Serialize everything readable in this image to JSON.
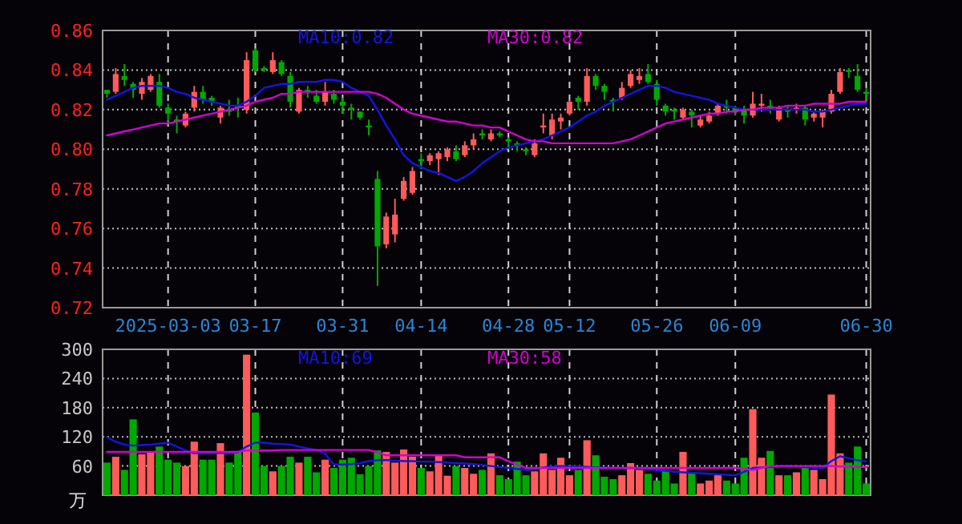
{
  "chart_data": [
    {
      "type": "candlestick",
      "categories": [
        null,
        null,
        null,
        null,
        null,
        null,
        null,
        "2025-03-03",
        null,
        null,
        null,
        null,
        null,
        null,
        null,
        null,
        null,
        "03-17",
        null,
        null,
        null,
        null,
        null,
        null,
        null,
        null,
        null,
        "03-31",
        null,
        null,
        null,
        null,
        null,
        null,
        null,
        null,
        "04-14",
        null,
        null,
        null,
        null,
        null,
        null,
        null,
        null,
        null,
        "04-28",
        null,
        null,
        null,
        null,
        null,
        null,
        "05-12",
        null,
        null,
        null,
        null,
        null,
        null,
        null,
        null,
        null,
        "05-26",
        null,
        null,
        null,
        null,
        null,
        null,
        null,
        null,
        "06-09",
        null,
        null,
        null,
        null,
        null,
        null,
        null,
        null,
        null,
        null,
        null,
        null,
        null,
        null,
        "06-30"
      ],
      "ohlc": [
        [
          0.83,
          0.83,
          0.826,
          0.828
        ],
        [
          0.829,
          0.841,
          0.828,
          0.838
        ],
        [
          0.837,
          0.843,
          0.832,
          0.835
        ],
        [
          0.833,
          0.834,
          0.826,
          0.83
        ],
        [
          0.828,
          0.836,
          0.825,
          0.834
        ],
        [
          0.83,
          0.838,
          0.829,
          0.837
        ],
        [
          0.834,
          0.838,
          0.821,
          0.822
        ],
        [
          0.821,
          0.823,
          0.813,
          0.818
        ],
        [
          0.815,
          0.817,
          0.808,
          0.814
        ],
        [
          0.812,
          0.819,
          0.811,
          0.818
        ],
        [
          0.821,
          0.832,
          0.819,
          0.829
        ],
        [
          0.829,
          0.832,
          0.823,
          0.825
        ],
        [
          0.826,
          0.827,
          0.822,
          0.824
        ],
        [
          0.816,
          0.822,
          0.813,
          0.821
        ],
        [
          0.82,
          0.825,
          0.817,
          0.819
        ],
        [
          0.822,
          0.826,
          0.816,
          0.821
        ],
        [
          0.82,
          0.849,
          0.818,
          0.845
        ],
        [
          0.85,
          0.851,
          0.839,
          0.84
        ],
        [
          0.841,
          0.842,
          0.839,
          0.84
        ],
        [
          0.839,
          0.849,
          0.838,
          0.845
        ],
        [
          0.844,
          0.845,
          0.837,
          0.838
        ],
        [
          0.837,
          0.839,
          0.821,
          0.824
        ],
        [
          0.819,
          0.831,
          0.818,
          0.83
        ],
        [
          0.83,
          0.832,
          0.826,
          0.829
        ],
        [
          0.827,
          0.83,
          0.823,
          0.824
        ],
        [
          0.824,
          0.834,
          0.822,
          0.829
        ],
        [
          0.828,
          0.83,
          0.823,
          0.825
        ],
        [
          0.824,
          0.826,
          0.818,
          0.822
        ],
        [
          0.821,
          0.823,
          0.815,
          0.82
        ],
        [
          0.819,
          0.819,
          0.815,
          0.816
        ],
        [
          0.812,
          0.815,
          0.807,
          0.811
        ],
        [
          0.785,
          0.789,
          0.731,
          0.751
        ],
        [
          0.752,
          0.768,
          0.75,
          0.766
        ],
        [
          0.757,
          0.775,
          0.753,
          0.767
        ],
        [
          0.775,
          0.786,
          0.774,
          0.784
        ],
        [
          0.778,
          0.791,
          0.777,
          0.789
        ],
        [
          0.795,
          0.798,
          0.79,
          0.794
        ],
        [
          0.794,
          0.798,
          0.792,
          0.797
        ],
        [
          0.795,
          0.799,
          0.787,
          0.798
        ],
        [
          0.796,
          0.801,
          0.794,
          0.8
        ],
        [
          0.799,
          0.802,
          0.794,
          0.795
        ],
        [
          0.797,
          0.804,
          0.796,
          0.802
        ],
        [
          0.802,
          0.808,
          0.8,
          0.805
        ],
        [
          0.808,
          0.81,
          0.805,
          0.807
        ],
        [
          0.805,
          0.81,
          0.804,
          0.808
        ],
        [
          0.808,
          0.809,
          0.806,
          0.807
        ],
        [
          0.805,
          0.806,
          0.8,
          0.804
        ],
        [
          0.803,
          0.804,
          0.799,
          0.802
        ],
        [
          0.8,
          0.801,
          0.797,
          0.799
        ],
        [
          0.797,
          0.805,
          0.796,
          0.803
        ],
        [
          0.811,
          0.818,
          0.808,
          0.812
        ],
        [
          0.807,
          0.818,
          0.805,
          0.815
        ],
        [
          0.814,
          0.818,
          0.81,
          0.816
        ],
        [
          0.818,
          0.825,
          0.817,
          0.824
        ],
        [
          0.826,
          0.827,
          0.82,
          0.824
        ],
        [
          0.824,
          0.841,
          0.822,
          0.837
        ],
        [
          0.837,
          0.838,
          0.83,
          0.832
        ],
        [
          0.832,
          0.833,
          0.825,
          0.829
        ],
        [
          0.825,
          0.826,
          0.819,
          0.824
        ],
        [
          0.826,
          0.834,
          0.825,
          0.831
        ],
        [
          0.832,
          0.84,
          0.831,
          0.838
        ],
        [
          0.835,
          0.841,
          0.833,
          0.837
        ],
        [
          0.838,
          0.843,
          0.833,
          0.834
        ],
        [
          0.833,
          0.835,
          0.822,
          0.825
        ],
        [
          0.822,
          0.823,
          0.817,
          0.819
        ],
        [
          0.82,
          0.821,
          0.815,
          0.819
        ],
        [
          0.816,
          0.821,
          0.815,
          0.82
        ],
        [
          0.819,
          0.82,
          0.811,
          0.817
        ],
        [
          0.812,
          0.817,
          0.811,
          0.815
        ],
        [
          0.814,
          0.819,
          0.813,
          0.817
        ],
        [
          0.818,
          0.823,
          0.817,
          0.822
        ],
        [
          0.822,
          0.825,
          0.818,
          0.821
        ],
        [
          0.821,
          0.822,
          0.817,
          0.819
        ],
        [
          0.82,
          0.822,
          0.813,
          0.817
        ],
        [
          0.817,
          0.829,
          0.816,
          0.823
        ],
        [
          0.822,
          0.828,
          0.819,
          0.823
        ],
        [
          0.822,
          0.825,
          0.818,
          0.821
        ],
        [
          0.815,
          0.822,
          0.814,
          0.821
        ],
        [
          0.82,
          0.822,
          0.816,
          0.819
        ],
        [
          0.82,
          0.823,
          0.818,
          0.821
        ],
        [
          0.821,
          0.822,
          0.812,
          0.815
        ],
        [
          0.816,
          0.819,
          0.814,
          0.818
        ],
        [
          0.816,
          0.82,
          0.811,
          0.819
        ],
        [
          0.819,
          0.83,
          0.818,
          0.828
        ],
        [
          0.829,
          0.841,
          0.828,
          0.839
        ],
        [
          0.84,
          0.841,
          0.836,
          0.839
        ],
        [
          0.837,
          0.843,
          0.829,
          0.83
        ],
        [
          0.829,
          0.831,
          0.824,
          0.828
        ]
      ],
      "colors": [
        "#00a800",
        "#ff5b5b",
        "#00a800",
        "#00a800",
        "#ff5b5b",
        "#ff5b5b",
        "#00a800",
        "#00a800",
        "#00a800",
        "#ff5b5b",
        "#ff5b5b",
        "#00a800",
        "#00a800",
        "#ff5b5b",
        "#00a800",
        "#00a800",
        "#ff5b5b",
        "#00a800",
        "#00a800",
        "#ff5b5b",
        "#00a800",
        "#00a800",
        "#ff5b5b",
        "#00a800",
        "#00a800",
        "#ff5b5b",
        "#00a800",
        "#00a800",
        "#00a800",
        "#00a800",
        "#00a800",
        "#00a800",
        "#ff5b5b",
        "#ff5b5b",
        "#ff5b5b",
        "#ff5b5b",
        "#00a800",
        "#ff5b5b",
        "#ff5b5b",
        "#ff5b5b",
        "#00a800",
        "#ff5b5b",
        "#ff5b5b",
        "#00a800",
        "#ff5b5b",
        "#00a800",
        "#00a800",
        "#00a800",
        "#00a800",
        "#ff5b5b",
        "#ff5b5b",
        "#ff5b5b",
        "#ff5b5b",
        "#ff5b5b",
        "#00a800",
        "#ff5b5b",
        "#00a800",
        "#00a800",
        "#00a800",
        "#ff5b5b",
        "#ff5b5b",
        "#ff5b5b",
        "#00a800",
        "#00a800",
        "#00a800",
        "#00a800",
        "#ff5b5b",
        "#00a800",
        "#ff5b5b",
        "#ff5b5b",
        "#ff5b5b",
        "#00a800",
        "#00a800",
        "#00a800",
        "#ff5b5b",
        "#ff5b5b",
        "#00a800",
        "#ff5b5b",
        "#00a800",
        "#ff5b5b",
        "#00a800",
        "#ff5b5b",
        "#ff5b5b",
        "#ff5b5b",
        "#ff5b5b",
        "#00a800",
        "#00a800",
        "#00a800"
      ],
      "series": [
        {
          "name": "MA10:0.82",
          "type": "line",
          "color": "#1414e6",
          "values": [
            0.825,
            0.827,
            0.829,
            0.831,
            0.832,
            0.832,
            0.832,
            0.831,
            0.829,
            0.828,
            0.826,
            0.825,
            0.824,
            0.823,
            0.822,
            0.822,
            0.824,
            0.827,
            0.831,
            0.832,
            0.833,
            0.833,
            0.834,
            0.834,
            0.834,
            0.835,
            0.835,
            0.834,
            0.831,
            0.829,
            0.827,
            0.82,
            0.812,
            0.805,
            0.797,
            0.793,
            0.791,
            0.789,
            0.788,
            0.786,
            0.784,
            0.786,
            0.789,
            0.793,
            0.796,
            0.799,
            0.801,
            0.802,
            0.803,
            0.804,
            0.805,
            0.807,
            0.809,
            0.811,
            0.814,
            0.817,
            0.819,
            0.822,
            0.824,
            0.826,
            0.828,
            0.83,
            0.832,
            0.832,
            0.831,
            0.829,
            0.828,
            0.827,
            0.826,
            0.825,
            0.823,
            0.822,
            0.821,
            0.82,
            0.82,
            0.82,
            0.82,
            0.82,
            0.82,
            0.82,
            0.82,
            0.819,
            0.819,
            0.82,
            0.821,
            0.822,
            0.823,
            0.823
          ]
        },
        {
          "name": "MA30:0.82",
          "type": "line",
          "color": "#d400d4",
          "values": [
            0.807,
            0.808,
            0.809,
            0.81,
            0.811,
            0.812,
            0.813,
            0.813,
            0.814,
            0.815,
            0.816,
            0.817,
            0.818,
            0.819,
            0.82,
            0.821,
            0.822,
            0.824,
            0.825,
            0.826,
            0.828,
            0.828,
            0.829,
            0.829,
            0.829,
            0.829,
            0.829,
            0.829,
            0.829,
            0.829,
            0.829,
            0.828,
            0.826,
            0.823,
            0.82,
            0.818,
            0.817,
            0.816,
            0.815,
            0.814,
            0.814,
            0.813,
            0.812,
            0.812,
            0.811,
            0.811,
            0.809,
            0.807,
            0.805,
            0.804,
            0.804,
            0.803,
            0.803,
            0.803,
            0.803,
            0.803,
            0.803,
            0.803,
            0.803,
            0.804,
            0.805,
            0.807,
            0.809,
            0.811,
            0.813,
            0.814,
            0.815,
            0.816,
            0.817,
            0.818,
            0.818,
            0.819,
            0.819,
            0.82,
            0.82,
            0.821,
            0.821,
            0.821,
            0.822,
            0.822,
            0.822,
            0.823,
            0.823,
            0.823,
            0.823,
            0.824,
            0.824,
            0.824
          ]
        }
      ],
      "ylim": [
        0.72,
        0.86
      ],
      "yticks": [
        0.72,
        0.74,
        0.76,
        0.78,
        {
          "value": 0.8,
          "label": "0.80"
        },
        0.82,
        0.84,
        0.86
      ],
      "grid": true
    },
    {
      "type": "bar",
      "categories": [
        null,
        null,
        null,
        null,
        null,
        null,
        null,
        null,
        null,
        null,
        null,
        null,
        null,
        null,
        null,
        null,
        null,
        null,
        null,
        null,
        null,
        null,
        null,
        null,
        null,
        null,
        null,
        null,
        null,
        null,
        null,
        null,
        null,
        null,
        null,
        null,
        null,
        null,
        null,
        null,
        null,
        null,
        null,
        null,
        null,
        null,
        null,
        null,
        null,
        null,
        null,
        null,
        null,
        null,
        null,
        null,
        null,
        null,
        null,
        null,
        null,
        null,
        null,
        null,
        null,
        null,
        null,
        null,
        null,
        null,
        null,
        null,
        null,
        null,
        null,
        null,
        null,
        null,
        null,
        null,
        null,
        null,
        null,
        null,
        null,
        null,
        null,
        null
      ],
      "tick_labels": "y",
      "ylabel": "万",
      "values": [
        67,
        79,
        52,
        156,
        84,
        89,
        100,
        73,
        67,
        60,
        110,
        73,
        73,
        107,
        67,
        89,
        289,
        170,
        60,
        49,
        60,
        79,
        67,
        79,
        47,
        73,
        56,
        73,
        77,
        43,
        60,
        92,
        89,
        67,
        94,
        79,
        56,
        49,
        81,
        40,
        60,
        56,
        44,
        52,
        86,
        41,
        33,
        69,
        41,
        49,
        86,
        52,
        77,
        41,
        52,
        113,
        82,
        38,
        33,
        41,
        66,
        52,
        44,
        30,
        52,
        24,
        89,
        47,
        24,
        30,
        41,
        30,
        24,
        77,
        177,
        77,
        91,
        41,
        41,
        47,
        56,
        52,
        33,
        207,
        86,
        67,
        100,
        24
      ],
      "colors": [
        "#00a800",
        "#ff5b5b",
        "#00a800",
        "#00a800",
        "#ff5b5b",
        "#ff5b5b",
        "#00a800",
        "#00a800",
        "#00a800",
        "#ff5b5b",
        "#ff5b5b",
        "#00a800",
        "#00a800",
        "#ff5b5b",
        "#00a800",
        "#00a800",
        "#ff5b5b",
        "#00a800",
        "#00a800",
        "#ff5b5b",
        "#00a800",
        "#00a800",
        "#ff5b5b",
        "#00a800",
        "#00a800",
        "#ff5b5b",
        "#00a800",
        "#00a800",
        "#00a800",
        "#00a800",
        "#00a800",
        "#00a800",
        "#ff5b5b",
        "#ff5b5b",
        "#ff5b5b",
        "#ff5b5b",
        "#00a800",
        "#ff5b5b",
        "#ff5b5b",
        "#ff5b5b",
        "#00a800",
        "#ff5b5b",
        "#ff5b5b",
        "#00a800",
        "#ff5b5b",
        "#00a800",
        "#00a800",
        "#00a800",
        "#00a800",
        "#ff5b5b",
        "#ff5b5b",
        "#ff5b5b",
        "#ff5b5b",
        "#ff5b5b",
        "#00a800",
        "#ff5b5b",
        "#00a800",
        "#00a800",
        "#00a800",
        "#ff5b5b",
        "#ff5b5b",
        "#ff5b5b",
        "#00a800",
        "#00a800",
        "#00a800",
        "#00a800",
        "#ff5b5b",
        "#00a800",
        "#ff5b5b",
        "#ff5b5b",
        "#ff5b5b",
        "#00a800",
        "#00a800",
        "#00a800",
        "#ff5b5b",
        "#ff5b5b",
        "#00a800",
        "#ff5b5b",
        "#00a800",
        "#ff5b5b",
        "#00a800",
        "#ff5b5b",
        "#ff5b5b",
        "#ff5b5b",
        "#ff5b5b",
        "#00a800",
        "#00a800",
        "#00a800"
      ],
      "series": [
        {
          "name": "MA10:69",
          "type": "line",
          "color": "#1414e6",
          "values": [
            119,
            110,
            104,
            102,
            103,
            104,
            106,
            108,
            100,
            92,
            86,
            87,
            87,
            87,
            87,
            88,
            100,
            108,
            108,
            106,
            105,
            104,
            100,
            96,
            93,
            85,
            63,
            63,
            64,
            66,
            70,
            72,
            72,
            71,
            70,
            70,
            69,
            69,
            68,
            67,
            66,
            65,
            64,
            62,
            60,
            58,
            56,
            54,
            52,
            54,
            57,
            59,
            60,
            60,
            59,
            58,
            57,
            57,
            56,
            56,
            56,
            55,
            54,
            52,
            50,
            48,
            47,
            46,
            45,
            44,
            43,
            42,
            41,
            48,
            56,
            57,
            58,
            59,
            60,
            59,
            58,
            56,
            56,
            70,
            80,
            76,
            72,
            69
          ]
        },
        {
          "name": "MA30:58",
          "type": "line",
          "color": "#d400d4",
          "values": [
            89,
            89,
            89,
            89,
            89,
            89,
            89,
            89,
            89,
            89,
            89,
            89,
            89,
            89,
            89,
            89,
            92,
            92,
            92,
            92,
            93,
            93,
            93,
            93,
            93,
            93,
            93,
            93,
            93,
            93,
            93,
            88,
            82,
            82,
            82,
            82,
            82,
            82,
            82,
            82,
            82,
            78,
            78,
            78,
            78,
            78,
            70,
            63,
            56,
            56,
            56,
            56,
            56,
            56,
            56,
            56,
            56,
            56,
            56,
            56,
            56,
            56,
            56,
            56,
            56,
            56,
            56,
            56,
            56,
            56,
            56,
            56,
            56,
            54,
            52,
            56,
            60,
            60,
            60,
            60,
            60,
            60,
            60,
            60,
            59,
            59,
            58,
            58
          ]
        }
      ],
      "ylim": [
        0,
        300
      ],
      "yticks": [
        60,
        120,
        180,
        240,
        300
      ],
      "grid": true
    }
  ]
}
